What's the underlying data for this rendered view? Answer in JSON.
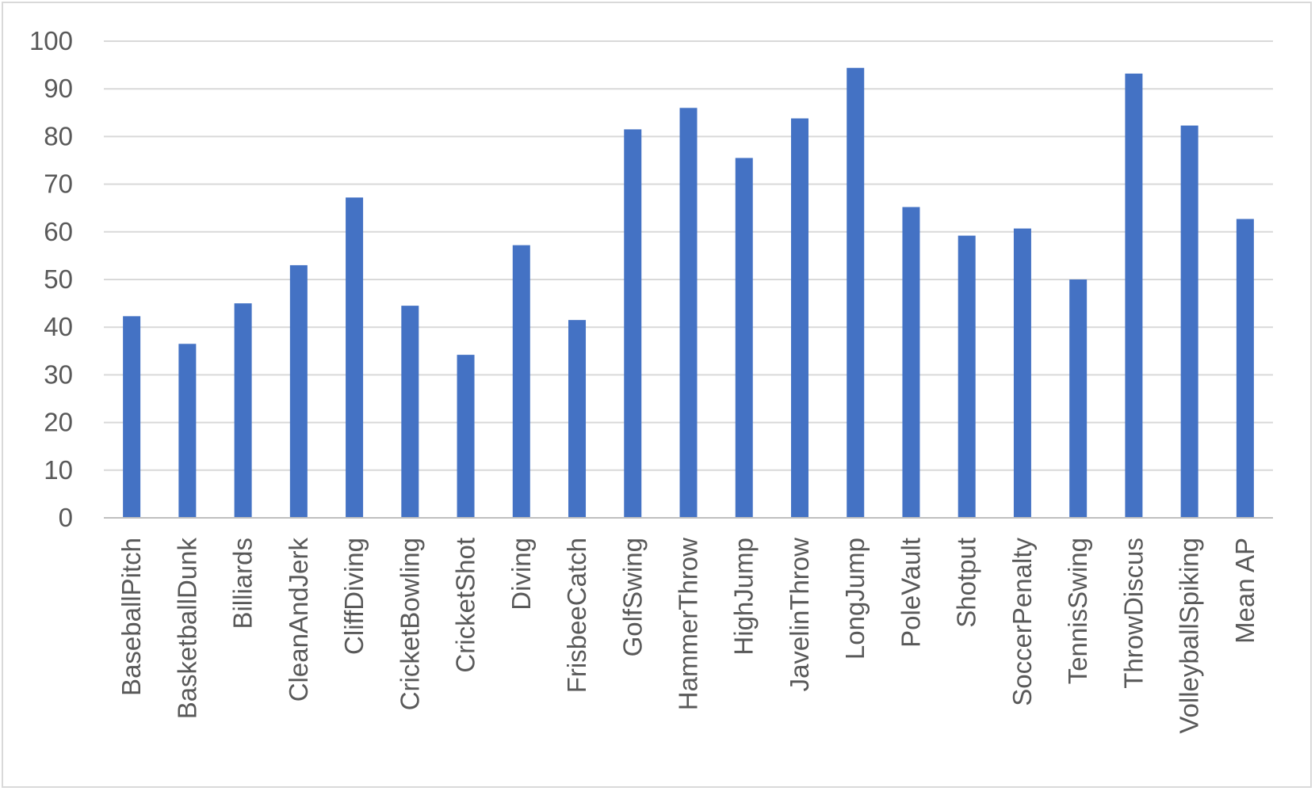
{
  "chart_data": {
    "type": "bar",
    "title": "",
    "xlabel": "",
    "ylabel": "",
    "categories": [
      "BaseballPitch",
      "BasketballDunk",
      "Billiards",
      "CleanAndJerk",
      "CliffDiving",
      "CricketBowling",
      "CricketShot",
      "Diving",
      "FrisbeeCatch",
      "GolfSwing",
      "HammerThrow",
      "HighJump",
      "JavelinThrow",
      "LongJump",
      "PoleVault",
      "Shotput",
      "SoccerPenalty",
      "TennisSwing",
      "ThrowDiscus",
      "VolleyballSpiking",
      "Mean AP"
    ],
    "values": [
      42.3,
      36.5,
      45.0,
      53.0,
      67.2,
      44.5,
      34.2,
      57.2,
      41.5,
      81.5,
      86.0,
      75.5,
      83.8,
      94.4,
      65.2,
      59.2,
      60.7,
      50.0,
      93.2,
      82.3,
      62.7
    ],
    "ylim": [
      0,
      100
    ],
    "yticks": [
      0,
      10,
      20,
      30,
      40,
      50,
      60,
      70,
      80,
      90,
      100
    ],
    "grid": true,
    "bar_color": "#4472c4",
    "legend": "none"
  }
}
